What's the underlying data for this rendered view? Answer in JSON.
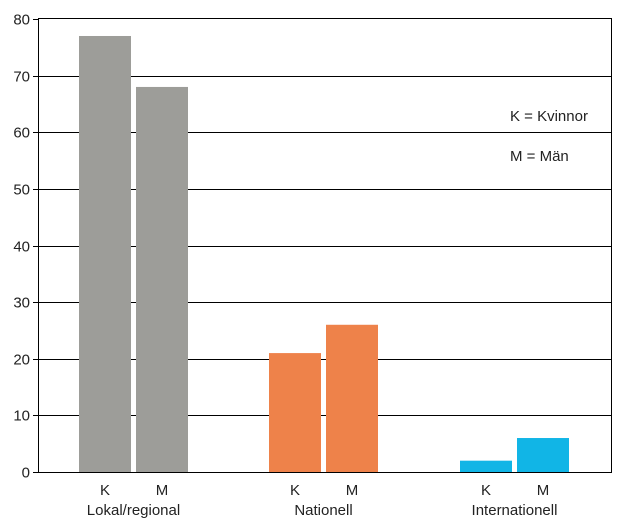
{
  "chart_data": {
    "type": "bar",
    "title": "",
    "xlabel": "",
    "ylabel": "",
    "ylim": [
      0,
      80
    ],
    "y_ticks": [
      0,
      10,
      20,
      30,
      40,
      50,
      60,
      70,
      80
    ],
    "grid": true,
    "groups": [
      {
        "label": "Lokal/regional",
        "color": "#9d9d99",
        "bars": [
          {
            "label": "K",
            "value": 77
          },
          {
            "label": "M",
            "value": 68
          }
        ]
      },
      {
        "label": "Nationell",
        "color": "#ee824a",
        "bars": [
          {
            "label": "K",
            "value": 21
          },
          {
            "label": "M",
            "value": 26
          }
        ]
      },
      {
        "label": "Internationell",
        "color": "#11b5e6",
        "bars": [
          {
            "label": "K",
            "value": 2
          },
          {
            "label": "M",
            "value": 6
          }
        ]
      }
    ],
    "annotations": [
      "K = Kvinnor",
      "M = Män"
    ]
  }
}
